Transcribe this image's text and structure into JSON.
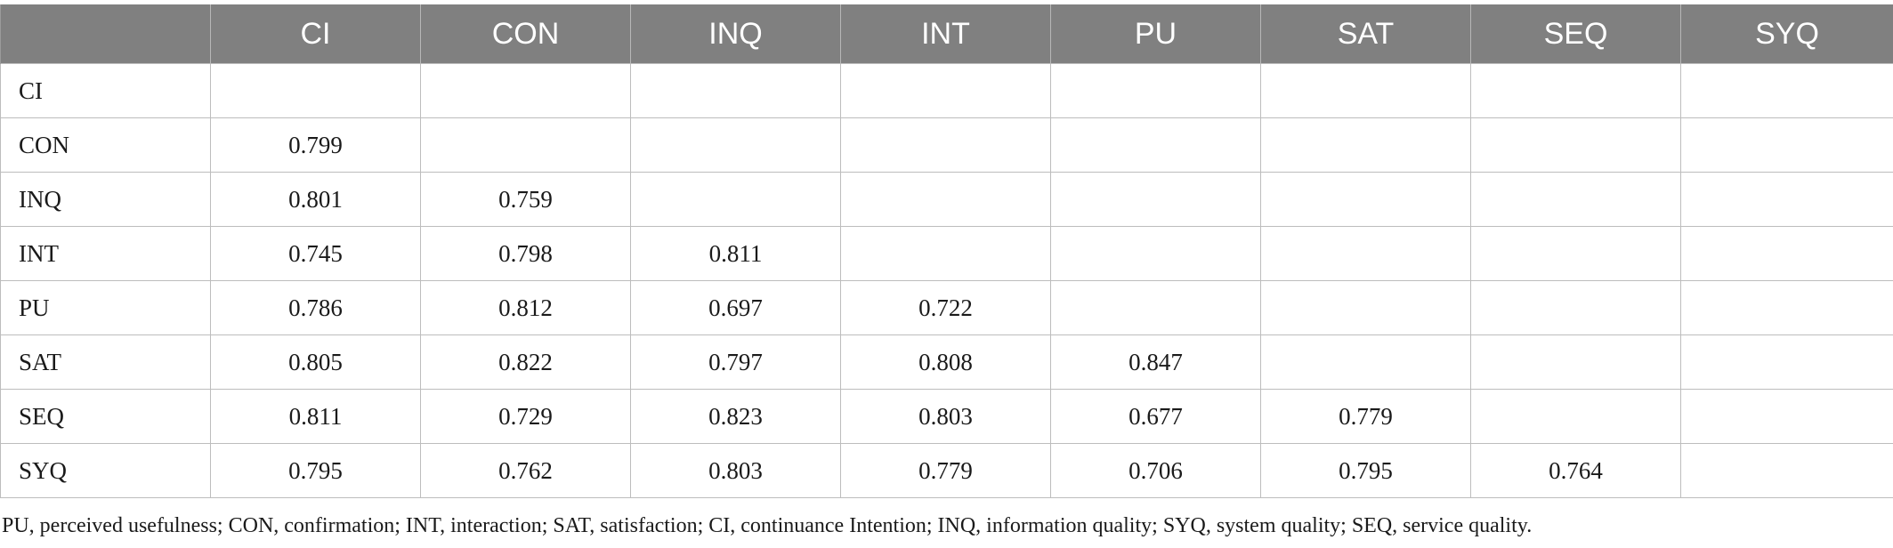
{
  "table": {
    "corner": "",
    "columns": [
      "CI",
      "CON",
      "INQ",
      "INT",
      "PU",
      "SAT",
      "SEQ",
      "SYQ"
    ],
    "rows": [
      {
        "label": "CI",
        "values": [
          "",
          "",
          "",
          "",
          "",
          "",
          "",
          ""
        ]
      },
      {
        "label": "CON",
        "values": [
          "0.799",
          "",
          "",
          "",
          "",
          "",
          "",
          ""
        ]
      },
      {
        "label": "INQ",
        "values": [
          "0.801",
          "0.759",
          "",
          "",
          "",
          "",
          "",
          ""
        ]
      },
      {
        "label": "INT",
        "values": [
          "0.745",
          "0.798",
          "0.811",
          "",
          "",
          "",
          "",
          ""
        ]
      },
      {
        "label": "PU",
        "values": [
          "0.786",
          "0.812",
          "0.697",
          "0.722",
          "",
          "",
          "",
          ""
        ]
      },
      {
        "label": "SAT",
        "values": [
          "0.805",
          "0.822",
          "0.797",
          "0.808",
          "0.847",
          "",
          "",
          ""
        ]
      },
      {
        "label": "SEQ",
        "values": [
          "0.811",
          "0.729",
          "0.823",
          "0.803",
          "0.677",
          "0.779",
          "",
          ""
        ]
      },
      {
        "label": "SYQ",
        "values": [
          "0.795",
          "0.762",
          "0.803",
          "0.779",
          "0.706",
          "0.795",
          "0.764",
          ""
        ]
      }
    ]
  },
  "footnote": "PU, perceived usefulness; CON, confirmation; INT, interaction; SAT, satisfaction; CI, continuance Intention; INQ, information quality; SYQ, system quality; SEQ, service quality.",
  "colors": {
    "header_bg": "#808080",
    "header_text": "#ffffff",
    "grid": "#bdbdbd"
  }
}
